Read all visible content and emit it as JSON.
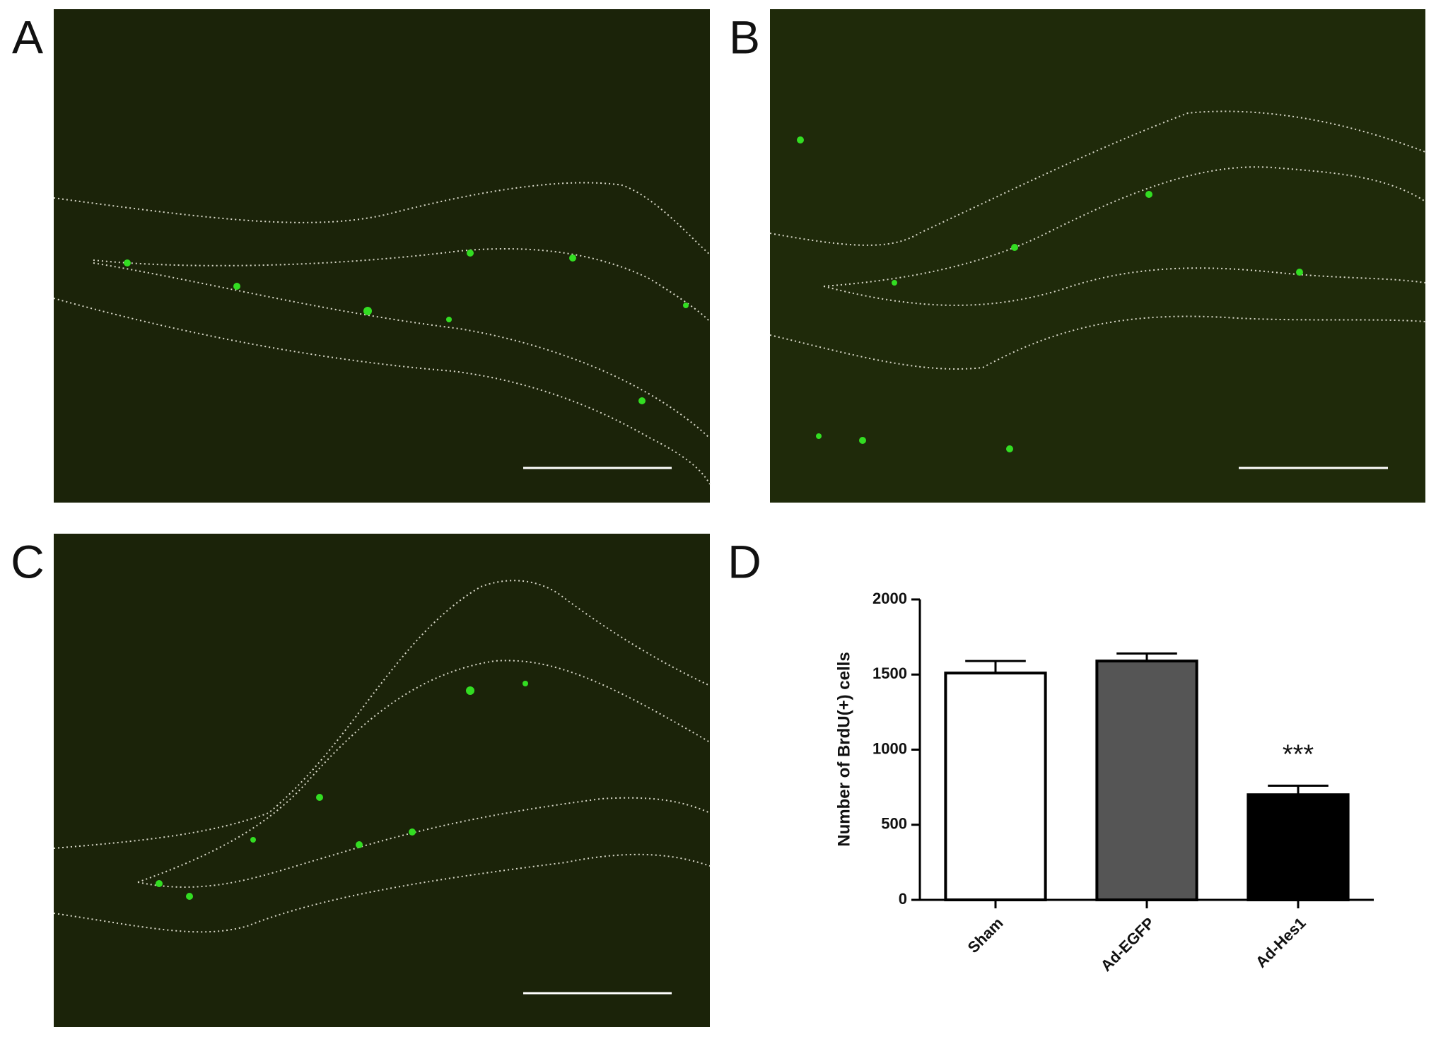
{
  "panels": [
    "A",
    "B",
    "C",
    "D"
  ],
  "chart_data": {
    "type": "bar",
    "y_label": "Number of BrdU(+) cells",
    "categories": [
      "Sham",
      "Ad-EGFP",
      "Ad-Hes1"
    ],
    "values": [
      1510,
      1590,
      700
    ],
    "errors": [
      80,
      50,
      60
    ],
    "colors": [
      "#ffffff",
      "#555555",
      "#000000"
    ],
    "annotations": [
      null,
      null,
      "***"
    ],
    "ylim": [
      0,
      2000
    ],
    "yticks": [
      0,
      500,
      1000,
      1500,
      2000
    ]
  }
}
